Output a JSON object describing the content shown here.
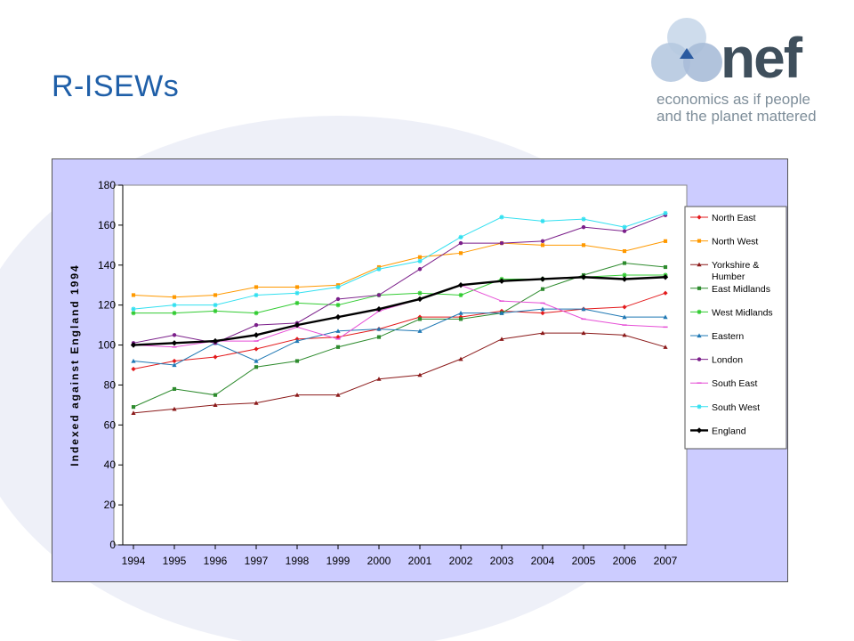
{
  "slide": {
    "title": "R-ISEWs"
  },
  "logo": {
    "word": "nef",
    "tagline_1": "economics as if people",
    "tagline_2": "and the planet mattered"
  },
  "chart_data": {
    "type": "line",
    "title": "",
    "xlabel": "",
    "ylabel": "Indexed against England 1994",
    "ylim": [
      0,
      180
    ],
    "yticks": [
      0,
      20,
      40,
      60,
      80,
      100,
      120,
      140,
      160,
      180
    ],
    "x": [
      "1994",
      "1995",
      "1996",
      "1997",
      "1998",
      "1999",
      "2000",
      "2001",
      "2002",
      "2003",
      "2004",
      "2005",
      "2006",
      "2007"
    ],
    "legend_position": "right",
    "grid": false,
    "series": [
      {
        "name": "North East",
        "color": "#e31a1c",
        "marker": "diamond",
        "values": [
          88,
          92,
          94,
          98,
          103,
          104,
          108,
          114,
          114,
          117,
          116,
          118,
          119,
          126
        ]
      },
      {
        "name": "North West",
        "color": "#ff9900",
        "marker": "square",
        "values": [
          125,
          124,
          125,
          129,
          129,
          130,
          139,
          144,
          146,
          151,
          150,
          150,
          147,
          152
        ]
      },
      {
        "name": "Yorkshire & Humber",
        "color": "#8b1a1a",
        "marker": "triangle",
        "values": [
          66,
          68,
          70,
          71,
          75,
          75,
          83,
          85,
          93,
          103,
          106,
          106,
          105,
          99
        ]
      },
      {
        "name": "East Midlands",
        "color": "#2e8b2e",
        "marker": "square",
        "values": [
          69,
          78,
          75,
          89,
          92,
          99,
          104,
          113,
          113,
          116,
          128,
          135,
          141,
          139
        ]
      },
      {
        "name": "West Midlands",
        "color": "#33cc33",
        "marker": "star",
        "values": [
          116,
          116,
          117,
          116,
          121,
          120,
          125,
          126,
          125,
          133,
          133,
          134,
          135,
          135
        ]
      },
      {
        "name": "Eastern",
        "color": "#1f78b4",
        "marker": "triangle",
        "values": [
          92,
          90,
          101,
          92,
          102,
          107,
          108,
          107,
          116,
          116,
          118,
          118,
          114,
          114
        ]
      },
      {
        "name": "London",
        "color": "#7b1f8a",
        "marker": "circle",
        "values": [
          101,
          105,
          101,
          110,
          111,
          123,
          125,
          138,
          151,
          151,
          152,
          159,
          157,
          165
        ]
      },
      {
        "name": "South East",
        "color": "#e64fd6",
        "marker": "dash",
        "values": [
          100,
          99,
          102,
          102,
          109,
          103,
          117,
          123,
          130,
          122,
          121,
          113,
          110,
          109
        ]
      },
      {
        "name": "South West",
        "color": "#33e0f0",
        "marker": "star",
        "values": [
          118,
          120,
          120,
          125,
          126,
          129,
          138,
          142,
          154,
          164,
          162,
          163,
          159,
          166
        ]
      },
      {
        "name": "England",
        "color": "#000000",
        "marker": "diamond",
        "bold": true,
        "values": [
          100,
          101,
          102,
          105,
          110,
          114,
          118,
          123,
          130,
          132,
          133,
          134,
          133,
          134
        ]
      }
    ]
  }
}
